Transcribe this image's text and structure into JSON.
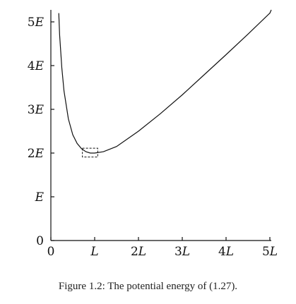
{
  "chart_data": {
    "type": "line",
    "x_ticks": [
      {
        "value": 0,
        "label": "0"
      },
      {
        "value": 1,
        "label": "L"
      },
      {
        "value": 2,
        "label": "2L"
      },
      {
        "value": 3,
        "label": "3L"
      },
      {
        "value": 4,
        "label": "4L"
      },
      {
        "value": 5,
        "label": "5L"
      }
    ],
    "y_ticks": [
      {
        "value": 0,
        "label": "0"
      },
      {
        "value": 1,
        "label": "E"
      },
      {
        "value": 2,
        "label": "2E"
      },
      {
        "value": 3,
        "label": "3E"
      },
      {
        "value": 4,
        "label": "4E"
      },
      {
        "value": 5,
        "label": "5E"
      }
    ],
    "xlim": [
      0,
      5.2
    ],
    "ylim": [
      0,
      5.3
    ],
    "series": [
      {
        "x": [
          0.18,
          0.2,
          0.25,
          0.3,
          0.4,
          0.5,
          0.6,
          0.7,
          0.8,
          0.9,
          1.0,
          1.2,
          1.5,
          2.0,
          2.5,
          3.0,
          3.5,
          4.0,
          4.5,
          5.0,
          5.2
        ],
        "y": [
          5.2,
          4.7,
          3.95,
          3.42,
          2.78,
          2.42,
          2.22,
          2.1,
          2.03,
          2.0,
          2.0,
          2.03,
          2.15,
          2.5,
          2.9,
          3.33,
          3.79,
          4.25,
          4.72,
          5.2,
          5.4
        ]
      }
    ],
    "annotations": [
      {
        "type": "dashed-box",
        "x_range": [
          0.72,
          1.07
        ],
        "y_range": [
          1.91,
          2.11
        ]
      }
    ],
    "grid": false,
    "caption": "Figure 1.2: The potential energy of (1.27)."
  }
}
